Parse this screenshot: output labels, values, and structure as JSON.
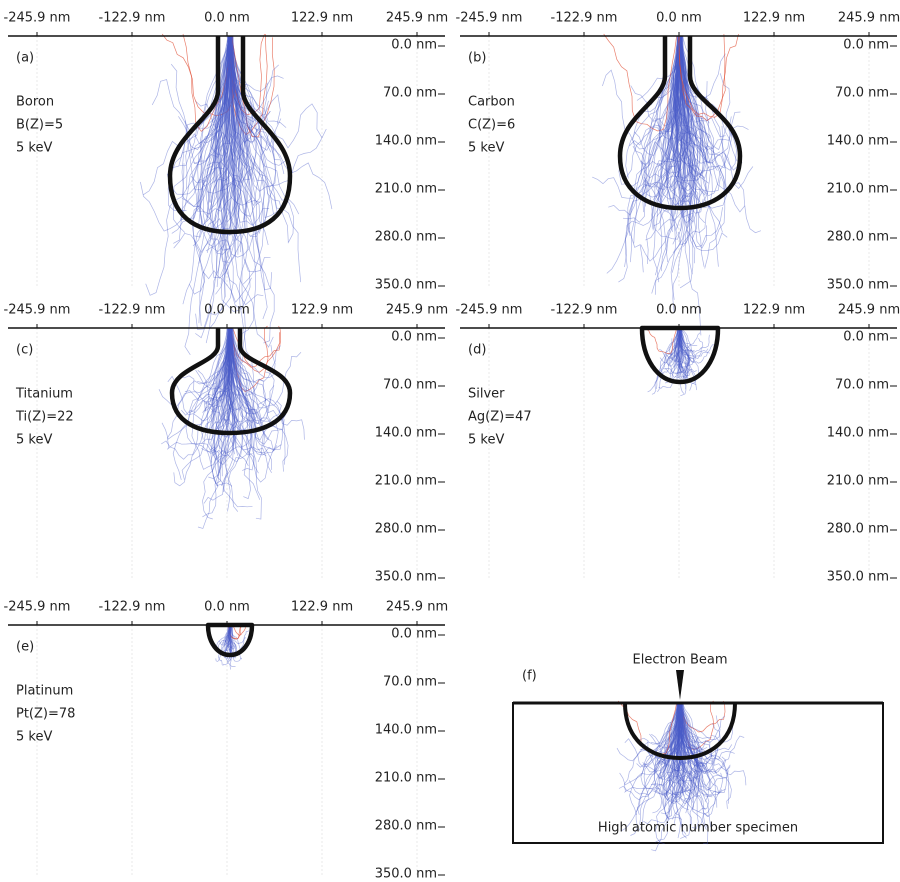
{
  "panels": [
    {
      "label": "(a)",
      "element": "Boron",
      "formula": "B(Z)=5",
      "energy": "5 keV",
      "xticks": [
        "-245.9 nm",
        "-122.9 nm",
        "0.0 nm",
        "122.9 nm",
        "245.9 nm"
      ],
      "yticks": [
        "0.0 nm",
        "70.0 nm",
        "140.0 nm",
        "210.0 nm",
        "280.0 nm",
        "350.0 nm"
      ]
    },
    {
      "label": "(b)",
      "element": "Carbon",
      "formula": "C(Z)=6",
      "energy": "5 keV",
      "xticks": [
        "-245.9 nm",
        "-122.9 nm",
        "0.0 nm",
        "122.9 nm",
        "245.9 nm"
      ],
      "yticks": [
        "0.0 nm",
        "70.0 nm",
        "140.0 nm",
        "210.0 nm",
        "280.0 nm",
        "350.0 nm"
      ]
    },
    {
      "label": "(c)",
      "element": "Titanium",
      "formula": "Ti(Z)=22",
      "energy": "5 keV",
      "xticks": [
        "-245.9 nm",
        "-122.9 nm",
        "0.0 nm",
        "122.9 nm",
        "245.9 nm"
      ],
      "yticks": [
        "0.0 nm",
        "70.0 nm",
        "140.0 nm",
        "210.0 nm",
        "280.0 nm",
        "350.0 nm"
      ]
    },
    {
      "label": "(d)",
      "element": "Silver",
      "formula": "Ag(Z)=47",
      "energy": "5 keV",
      "xticks": [
        "-245.9 nm",
        "-122.9 nm",
        "0.0 nm",
        "122.9 nm",
        "245.9 nm"
      ],
      "yticks": [
        "0.0 nm",
        "70.0 nm",
        "140.0 nm",
        "210.0 nm",
        "280.0 nm",
        "350.0 nm"
      ]
    },
    {
      "label": "(e)",
      "element": "Platinum",
      "formula": "Pt(Z)=78",
      "energy": "5 keV",
      "xticks": [
        "-245.9 nm",
        "-122.9 nm",
        "0.0 nm",
        "122.9 nm",
        "245.9 nm"
      ],
      "yticks": [
        "0.0 nm",
        "70.0 nm",
        "140.0 nm",
        "210.0 nm",
        "280.0 nm",
        "350.0 nm"
      ]
    }
  ],
  "panel_f": {
    "label": "(f)",
    "beam": "Electron Beam",
    "specimen": "High atomic number specimen"
  }
}
